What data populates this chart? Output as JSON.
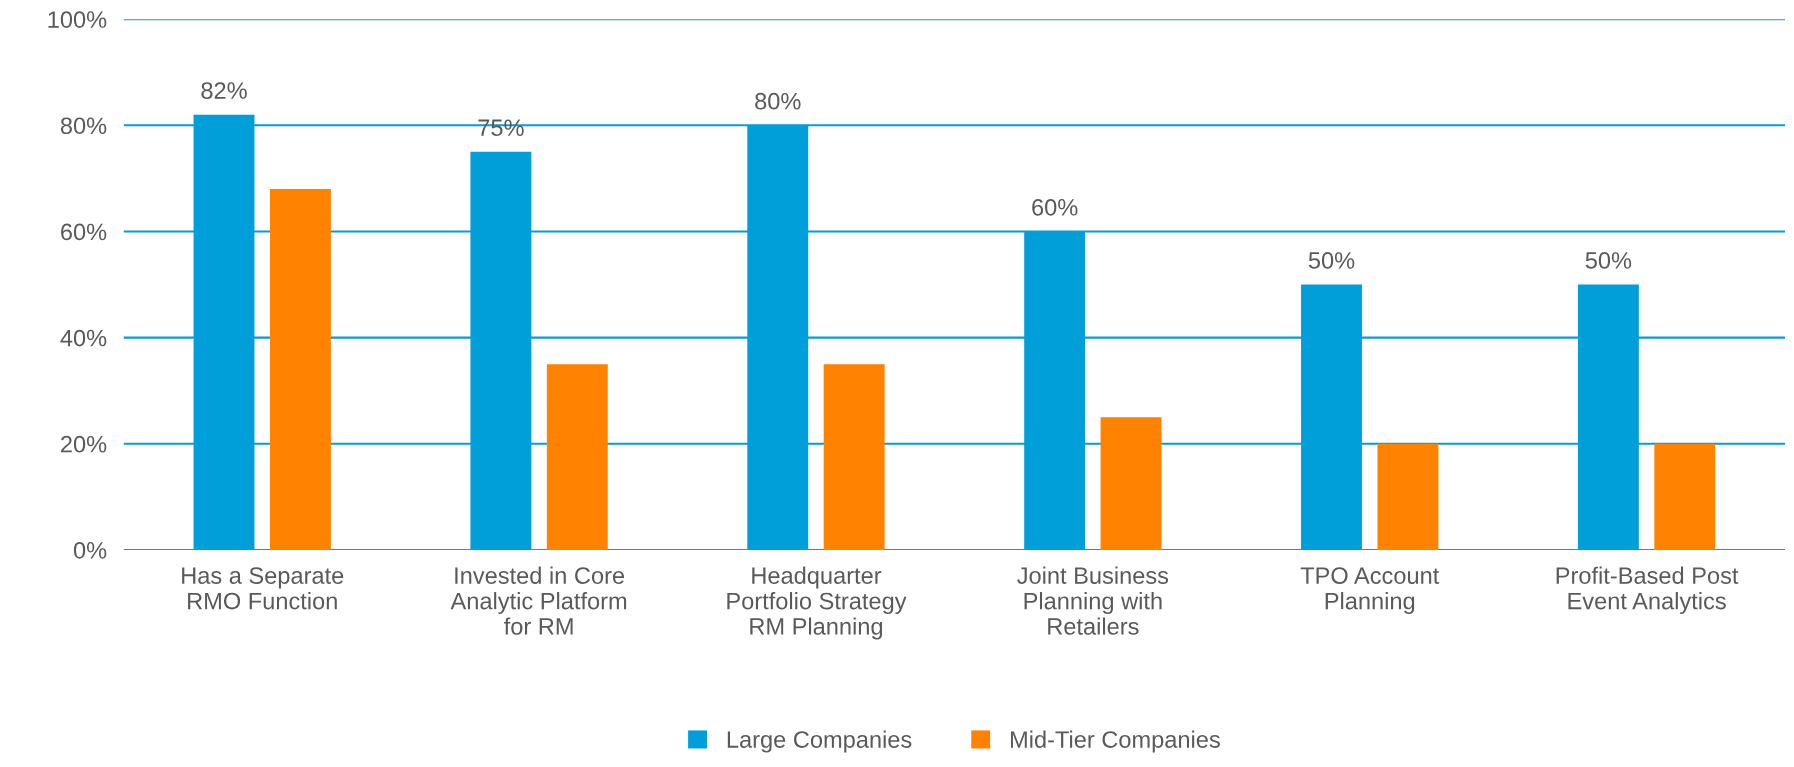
{
  "chart_data": {
    "type": "bar",
    "categories": [
      "Has a Separate\nRMO Function",
      "Invested in Core\nAnalytic Platform\nfor RM",
      "Headquarter\nPortfolio Strategy\nRM Planning",
      "Joint Business\nPlanning with\nRetailers",
      "TPO Account\nPlanning",
      "Profit-Based Post\nEvent Analytics"
    ],
    "series": [
      {
        "name": "Large Companies",
        "color": "#009fda",
        "values": [
          82,
          75,
          80,
          60,
          50,
          50
        ],
        "value_labels": [
          "82%",
          "75%",
          "80%",
          "60%",
          "50%",
          "50%"
        ]
      },
      {
        "name": "Mid-Tier Companies",
        "color": "#ff8200",
        "values": [
          68,
          35,
          35,
          25,
          20,
          20
        ]
      }
    ],
    "ylim": [
      0,
      100
    ],
    "yticks": [
      {
        "value": 0,
        "label": "0%"
      },
      {
        "value": 20,
        "label": "20%"
      },
      {
        "value": 40,
        "label": "40%"
      },
      {
        "value": 60,
        "label": "60%"
      },
      {
        "value": 80,
        "label": "80%"
      },
      {
        "value": 100,
        "label": "100%"
      }
    ],
    "grid": "y",
    "legend": "bottom"
  }
}
